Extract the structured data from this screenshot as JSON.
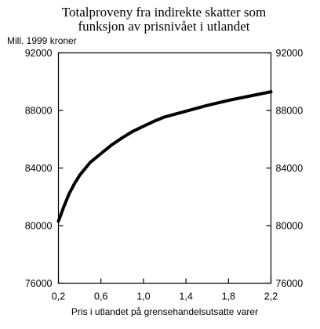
{
  "chart_data": {
    "type": "line",
    "title": [
      "Totalproveny fra indirekte skatter som",
      "funksjon av prisnivået i utlandet"
    ],
    "ylabel": "Mill. 1999 kroner",
    "xlabel": "Pris i utlandet på grensehandelsutsatte varer",
    "xlim": [
      0.2,
      2.2
    ],
    "ylim": [
      76000,
      92000
    ],
    "xticks": [
      "0,2",
      "0,6",
      "1,0",
      "1,4",
      "1,8",
      "2,2"
    ],
    "xtick_values": [
      0.2,
      0.6,
      1.0,
      1.4,
      1.8,
      2.2
    ],
    "yticks_left": [
      "92000",
      "88000",
      "84000",
      "80000",
      "76000"
    ],
    "yticks_right": [
      "92000",
      "88000",
      "84000",
      "80000",
      "76000"
    ],
    "ytick_values": [
      92000,
      88000,
      84000,
      80000,
      76000
    ],
    "series": [
      {
        "x": [
          0.2,
          0.25,
          0.3,
          0.35,
          0.4,
          0.5,
          0.6,
          0.7,
          0.8,
          0.9,
          1.0,
          1.1,
          1.2,
          1.4,
          1.6,
          1.8,
          2.0,
          2.2
        ],
        "y": [
          80300,
          81300,
          82200,
          82900,
          83500,
          84400,
          85000,
          85600,
          86100,
          86550,
          86900,
          87250,
          87550,
          87950,
          88350,
          88700,
          89000,
          89300
        ]
      }
    ]
  }
}
